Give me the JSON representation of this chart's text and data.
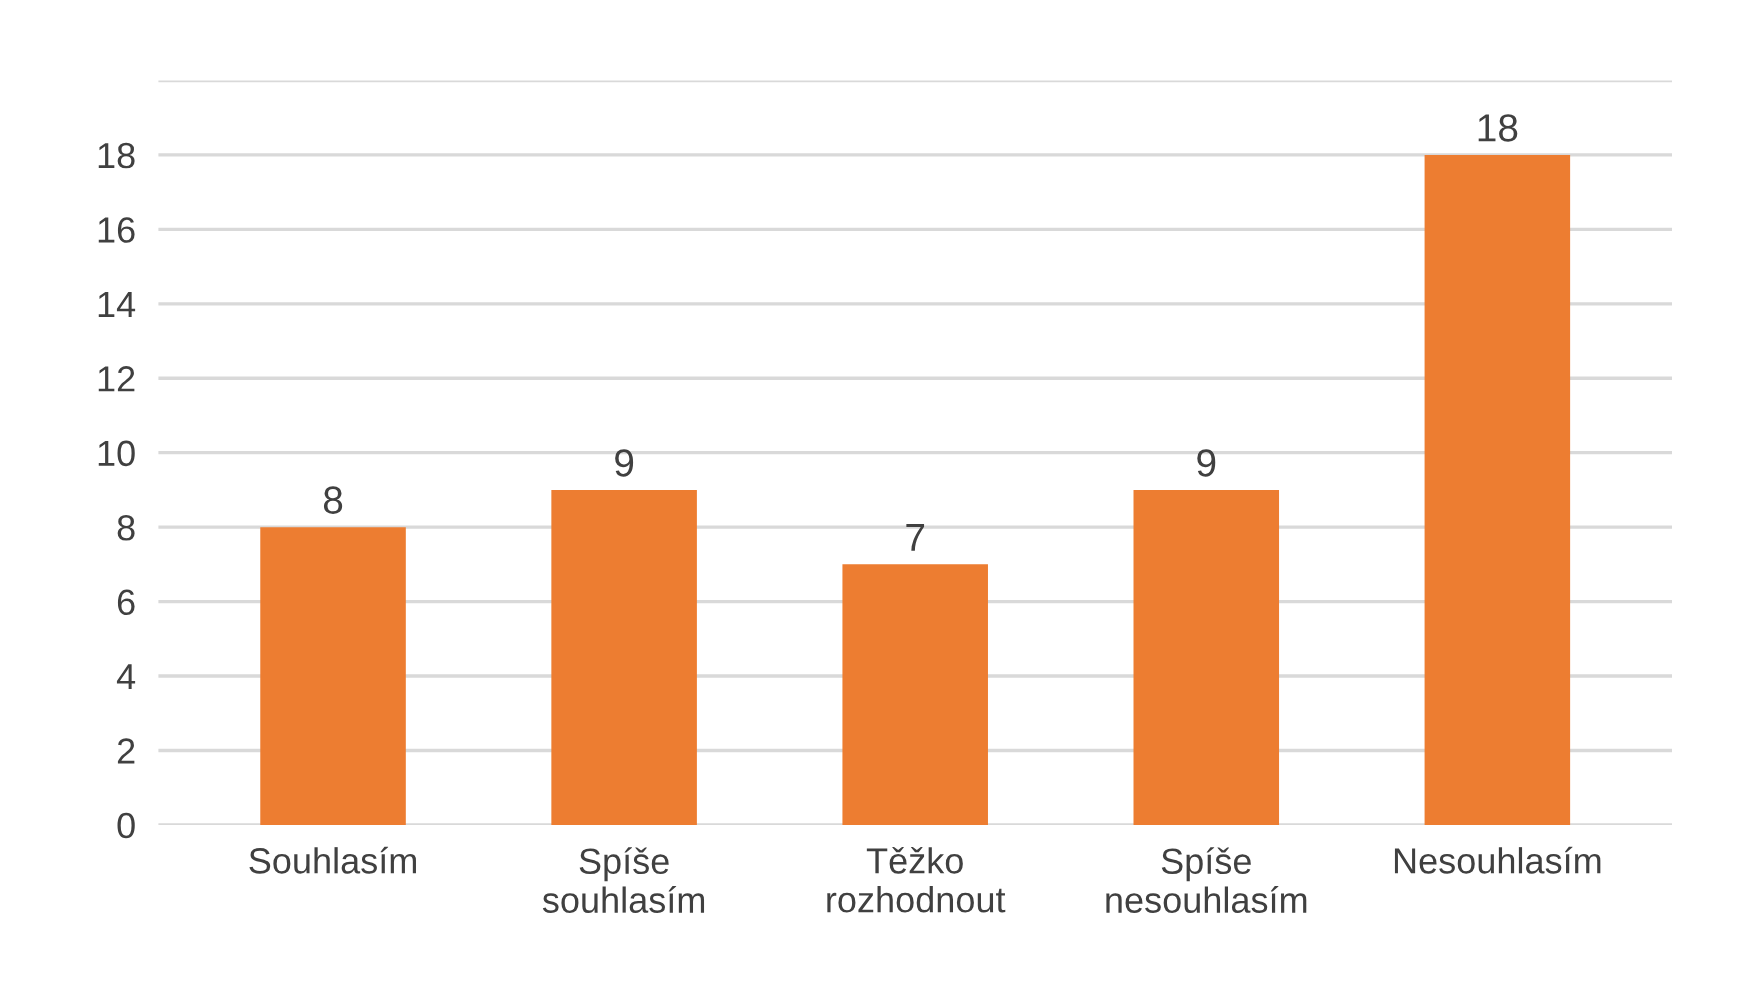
{
  "chart_data": {
    "type": "bar",
    "categories": [
      "Souhlasím",
      "Spíše\nsouhlasím",
      "Těžko\nrozhodnout",
      "Spíše\nnesouhlasím",
      "Nesouhlasím"
    ],
    "values": [
      8,
      9,
      7,
      9,
      18
    ],
    "color": "#ed7d31",
    "ylim": [
      0,
      20
    ],
    "yticks": [
      0,
      2,
      4,
      6,
      8,
      10,
      12,
      14,
      16,
      18,
      {
        "value": 20,
        "label": null
      }
    ],
    "grid": "y",
    "data_labels": true
  }
}
